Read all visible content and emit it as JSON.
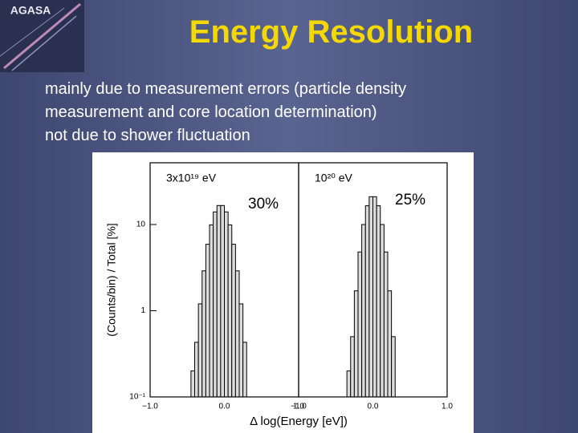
{
  "header": {
    "logo": "AGASA",
    "title": "Energy Resolution"
  },
  "body": {
    "lines": [
      "mainly due to measurement errors (particle density",
      "measurement and core location determination)",
      "not due to shower fluctuation"
    ]
  },
  "figure": {
    "y_label": "(Counts/bin) / Total [%]",
    "x_label": "Δ log(Energy [eV])"
  },
  "chart_data": [
    {
      "type": "histogram",
      "label": "3x10¹⁹ eV",
      "annotation": "30%",
      "color": "#dcdcdc",
      "yscale": "log",
      "bins": [
        -0.45,
        -0.4,
        -0.35,
        -0.3,
        -0.25,
        -0.2,
        -0.15,
        -0.1,
        -0.05,
        0,
        0.05,
        0.1,
        0.15,
        0.2,
        0.25,
        0.3
      ],
      "values": [
        0.2,
        0.43,
        1.2,
        2.9,
        5.9,
        9.9,
        14,
        16.6,
        16.6,
        14,
        9.9,
        5.9,
        2.9,
        1.2,
        0.43
      ],
      "xlim": [
        -1,
        1
      ],
      "xticks": [
        {
          "value": -1,
          "label": "−1.0"
        },
        {
          "value": 0,
          "label": "0.0"
        },
        {
          "value": 1,
          "label": "1.0"
        }
      ],
      "ylim": [
        0.1,
        52
      ],
      "yticks": [
        {
          "value": 0.1,
          "label": "10⁻¹"
        },
        1,
        10
      ]
    },
    {
      "type": "histogram",
      "label": "10²⁰ eV",
      "annotation": "25%",
      "color": "#dcdcdc",
      "yscale": "log",
      "bins": [
        -0.35,
        -0.3,
        -0.25,
        -0.2,
        -0.15,
        -0.1,
        -0.05,
        0,
        0.05,
        0.1,
        0.15,
        0.2,
        0.25,
        0.3
      ],
      "values": [
        0.2,
        0.5,
        1.7,
        4.8,
        10,
        16.5,
        21,
        21,
        16.5,
        10,
        4.8,
        1.7,
        0.5
      ],
      "xlim": [
        -1,
        1
      ],
      "xticks": [
        {
          "value": -1,
          "label": "−1.0"
        },
        {
          "value": 0,
          "label": "0.0"
        },
        {
          "value": 1,
          "label": "1.0"
        }
      ],
      "ylim": [
        0.1,
        52
      ]
    }
  ]
}
